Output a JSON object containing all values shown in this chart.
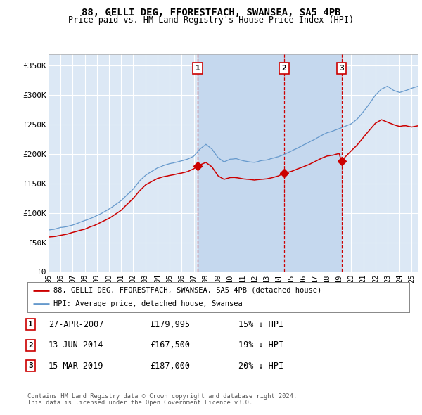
{
  "title": "88, GELLI DEG, FFORESTFACH, SWANSEA, SA5 4PB",
  "subtitle": "Price paid vs. HM Land Registry's House Price Index (HPI)",
  "legend_label_red": "88, GELLI DEG, FFORESTFACH, SWANSEA, SA5 4PB (detached house)",
  "legend_label_blue": "HPI: Average price, detached house, Swansea",
  "footer1": "Contains HM Land Registry data © Crown copyright and database right 2024.",
  "footer2": "This data is licensed under the Open Government Licence v3.0.",
  "yticks": [
    0,
    50000,
    100000,
    150000,
    200000,
    250000,
    300000,
    350000
  ],
  "ytick_labels": [
    "£0",
    "£50K",
    "£100K",
    "£150K",
    "£200K",
    "£250K",
    "£300K",
    "£350K"
  ],
  "ylim": [
    0,
    370000
  ],
  "red_color": "#cc0000",
  "blue_color": "#6699cc",
  "bg_color": "#dce8f5",
  "shade_color": "#c5d8ee",
  "grid_color": "#ffffff",
  "sale_markers": [
    {
      "label": "1",
      "x_year": 2007.32,
      "price": 179995
    },
    {
      "label": "2",
      "x_year": 2014.45,
      "price": 167500
    },
    {
      "label": "3",
      "x_year": 2019.21,
      "price": 187000
    }
  ],
  "table_rows": [
    {
      "num": "1",
      "date": "27-APR-2007",
      "price": "£179,995",
      "pct": "15% ↓ HPI"
    },
    {
      "num": "2",
      "date": "13-JUN-2014",
      "price": "£167,500",
      "pct": "19% ↓ HPI"
    },
    {
      "num": "3",
      "date": "15-MAR-2019",
      "price": "£187,000",
      "pct": "20% ↓ HPI"
    }
  ],
  "xlim_start": 1995.0,
  "xlim_end": 2025.5,
  "shade_start": 2007.32,
  "shade_end": 2019.21
}
